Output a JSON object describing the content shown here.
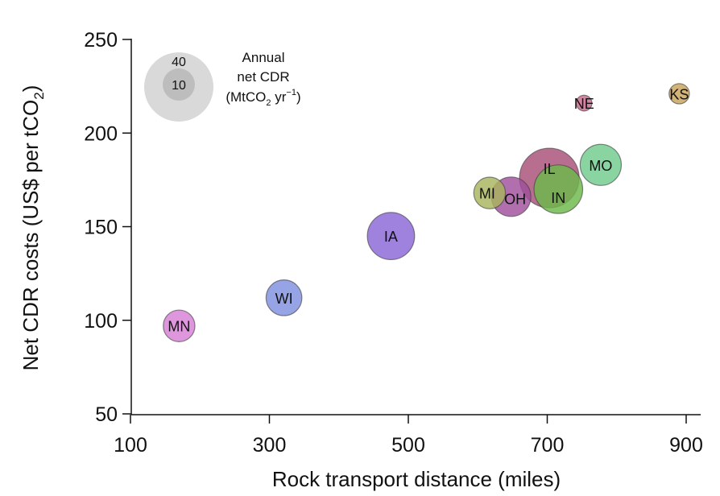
{
  "chart_data": {
    "type": "scatter",
    "subtype": "bubble",
    "xlabel": "Rock transport distance (miles)",
    "ylabel_parts": {
      "main": "Net CDR costs (US$ per tCO",
      "sub": "2",
      "end": ")"
    },
    "xlim": [
      100,
      910
    ],
    "ylim": [
      50,
      250
    ],
    "x_ticks": [
      100,
      300,
      500,
      700,
      900
    ],
    "y_ticks": [
      50,
      100,
      150,
      200,
      250
    ],
    "points": [
      {
        "label": "MN",
        "x": 170,
        "y": 97,
        "cdr": 6,
        "color": "#d77fd4"
      },
      {
        "label": "WI",
        "x": 321,
        "y": 112,
        "cdr": 8,
        "color": "#7f8fde"
      },
      {
        "label": "IA",
        "x": 475,
        "y": 145,
        "cdr": 15,
        "color": "#8a66d6"
      },
      {
        "label": "MI",
        "x": 617,
        "y": 168,
        "cdr": 6,
        "color": "#a9b45e"
      },
      {
        "label": "OH",
        "x": 648,
        "y": 166,
        "cdr": 10,
        "color": "#a04f9c"
      },
      {
        "label": "IL",
        "x": 703,
        "y": 176,
        "cdr": 25,
        "color": "#a84f76"
      },
      {
        "label": "IN",
        "x": 716,
        "y": 170,
        "cdr": 16,
        "color": "#6cb84a"
      },
      {
        "label": "MO",
        "x": 777,
        "y": 183,
        "cdr": 11,
        "color": "#6fca8c"
      },
      {
        "label": "NE",
        "x": 753,
        "y": 216,
        "cdr": 1,
        "color": "#c86a8e"
      },
      {
        "label": "KS",
        "x": 890,
        "y": 221,
        "cdr": 2,
        "color": "#c9a35a"
      }
    ],
    "legend": {
      "title_lines": [
        "Annual",
        "net CDR"
      ],
      "unit_parts": {
        "a": "(MtCO",
        "b": "2",
        "c": " yr",
        "d": "−1",
        "e": ")"
      },
      "sizes": [
        40,
        10
      ],
      "outer_color": "#d9d9d9",
      "inner_color": "#bdbdbd",
      "placement": "top-left"
    }
  }
}
